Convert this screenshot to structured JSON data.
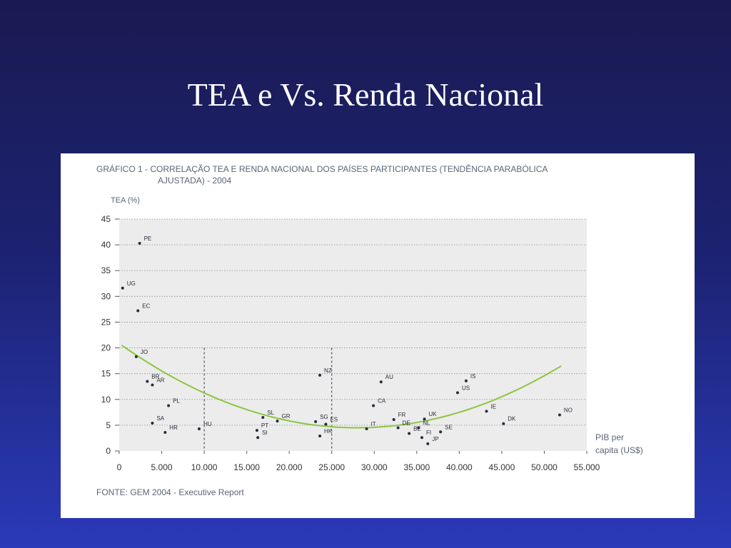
{
  "slide": {
    "title": "TEA e Vs. Renda Nacional"
  },
  "colors": {
    "background": "#1c2270",
    "panel": "#ffffff",
    "plot_area": "#ececec",
    "trend_line": "#8cc63f",
    "point": "#2a2a3a",
    "text": "#5a6578"
  },
  "chart_data": {
    "type": "scatter",
    "title_line1": "GRÁFICO 1 - CORRELAÇÃO TEA E RENDA NACIONAL DOS PAÍSES PARTICIPANTES (TENDÊNCIA PARABÓLICA",
    "title_line2": "AJUSTADA) - 2004",
    "ylabel": "TEA (%)",
    "xlabel_line1": "PIB per",
    "xlabel_line2": "capita (US$)",
    "source": "FONTE: GEM 2004 - Executive Report",
    "xlim": [
      0,
      55000
    ],
    "ylim": [
      0,
      45
    ],
    "xticks": [
      0,
      5000,
      10000,
      15000,
      20000,
      25000,
      30000,
      35000,
      40000,
      45000,
      50000,
      55000
    ],
    "xtick_labels": [
      "0",
      "5.000",
      "10.000",
      "15.000",
      "20.000",
      "25.000",
      "30.000",
      "35.000",
      "40.000",
      "45.000",
      "50.000",
      "55.000"
    ],
    "yticks": [
      0,
      5,
      10,
      15,
      20,
      25,
      30,
      35,
      40,
      45
    ],
    "ytick_labels": [
      "0",
      "5",
      "10",
      "15",
      "20",
      "25",
      "30",
      "35",
      "40",
      "45"
    ],
    "grid": "horizontal dotted",
    "vertical_reference_lines": [
      10000,
      25000
    ],
    "points": [
      {
        "label": "PE",
        "x": 2400,
        "y": 40.3
      },
      {
        "label": "UG",
        "x": 400,
        "y": 31.6
      },
      {
        "label": "EC",
        "x": 2200,
        "y": 27.2
      },
      {
        "label": "JO",
        "x": 2000,
        "y": 18.3
      },
      {
        "label": "BR",
        "x": 3300,
        "y": 13.5
      },
      {
        "label": "AR",
        "x": 3900,
        "y": 12.8
      },
      {
        "label": "PL",
        "x": 5800,
        "y": 8.8
      },
      {
        "label": "SA",
        "x": 3900,
        "y": 5.4
      },
      {
        "label": "HR",
        "x": 5400,
        "y": 3.6
      },
      {
        "label": "HU",
        "x": 9400,
        "y": 4.3
      },
      {
        "label": "SL",
        "x": 16900,
        "y": 6.5
      },
      {
        "label": "PT",
        "x": 16200,
        "y": 4.0
      },
      {
        "label": "SI",
        "x": 16300,
        "y": 2.6
      },
      {
        "label": "GR",
        "x": 18600,
        "y": 5.8
      },
      {
        "label": "NZ",
        "x": 23600,
        "y": 14.7
      },
      {
        "label": "SG",
        "x": 23100,
        "y": 5.7
      },
      {
        "label": "ES",
        "x": 24300,
        "y": 5.2
      },
      {
        "label": "HK",
        "x": 23600,
        "y": 2.9
      },
      {
        "label": "IT",
        "x": 29100,
        "y": 4.3
      },
      {
        "label": "AU",
        "x": 30800,
        "y": 13.4
      },
      {
        "label": "CA",
        "x": 29900,
        "y": 8.8
      },
      {
        "label": "FR",
        "x": 32300,
        "y": 6.1
      },
      {
        "label": "DE",
        "x": 32800,
        "y": 4.5
      },
      {
        "label": "BE",
        "x": 34100,
        "y": 3.4
      },
      {
        "label": "NL",
        "x": 35200,
        "y": 4.5
      },
      {
        "label": "UK",
        "x": 35900,
        "y": 6.2
      },
      {
        "label": "FI",
        "x": 35600,
        "y": 2.6
      },
      {
        "label": "JP",
        "x": 36300,
        "y": 1.4
      },
      {
        "label": "SE",
        "x": 37800,
        "y": 3.7
      },
      {
        "label": "US",
        "x": 39800,
        "y": 11.3
      },
      {
        "label": "IS",
        "x": 40800,
        "y": 13.6
      },
      {
        "label": "IE",
        "x": 43200,
        "y": 7.7
      },
      {
        "label": "DK",
        "x": 45200,
        "y": 5.3
      },
      {
        "label": "NO",
        "x": 51800,
        "y": 7.0
      }
    ],
    "trend": {
      "type": "parabolic",
      "x_range": [
        300,
        52000
      ],
      "min_x": 28000,
      "min_y": 4.5
    }
  }
}
